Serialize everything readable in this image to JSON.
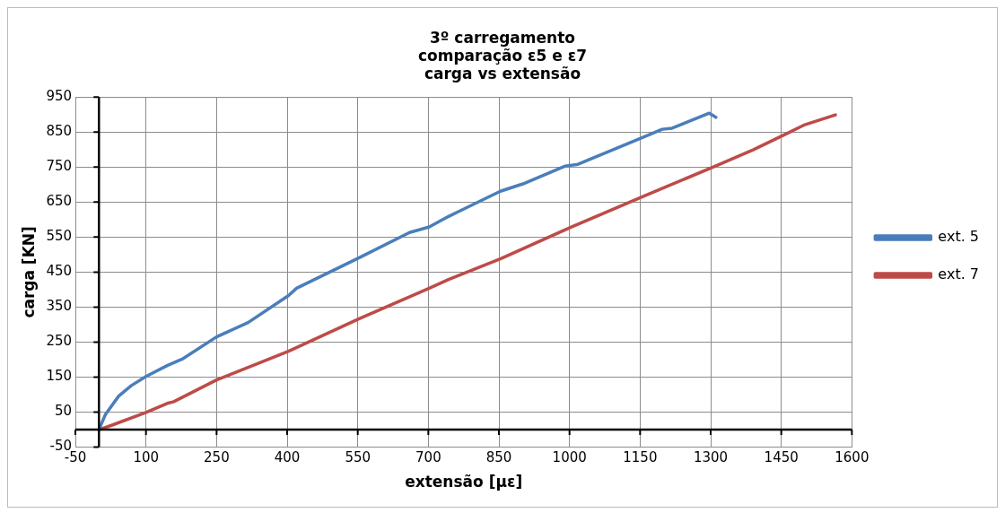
{
  "chart_data": {
    "type": "line",
    "title": "3º carregamento\ncomparação ε5 e ε7\ncarga vs extensão",
    "xlabel": "extensão [με]",
    "ylabel": "carga [KN]",
    "xlim": [
      -50,
      1600
    ],
    "xticks": [
      -50,
      100,
      250,
      400,
      550,
      700,
      850,
      1000,
      1150,
      1300,
      1450,
      1600
    ],
    "ylim": [
      -50,
      950
    ],
    "yticks": [
      -50,
      50,
      150,
      250,
      350,
      450,
      550,
      650,
      750,
      850,
      950
    ],
    "grid": true,
    "legend": "right",
    "marker": "none",
    "line_style": "solid",
    "series": [
      {
        "name": "ext. 5",
        "color": "#4a7ebb",
        "x": [
          0,
          14,
          42,
          69,
          100,
          145,
          179,
          250,
          317,
          403,
          420,
          553,
          660,
          702,
          743,
          853,
          901,
          991,
          1018,
          1156,
          1197,
          1218,
          1297,
          1311
        ],
        "values": [
          0,
          44,
          96,
          126,
          152,
          183,
          203,
          265,
          306,
          383,
          404,
          491,
          563,
          579,
          609,
          681,
          702,
          753,
          758,
          835,
          858,
          861,
          904,
          892
        ]
      },
      {
        "name": "ext. 7",
        "color": "#be4b48",
        "x": [
          0,
          28,
          100,
          145,
          159,
          250,
          403,
          553,
          702,
          743,
          853,
          1004,
          1156,
          1307,
          1390,
          1462,
          1500,
          1565
        ],
        "values": [
          0,
          13,
          49,
          75,
          80,
          142,
          224,
          317,
          404,
          429,
          488,
          579,
          666,
          751,
          799,
          846,
          871,
          899
        ]
      }
    ]
  }
}
